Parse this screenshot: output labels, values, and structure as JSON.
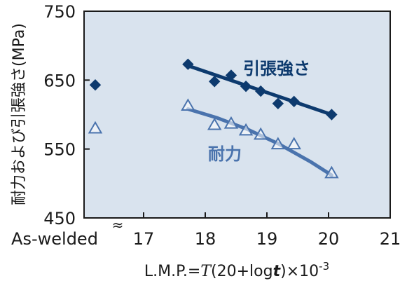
{
  "chart_data": {
    "type": "scatter",
    "xlabel": "L.M.P.=T(20+logt)×10-3",
    "xlabel_parts": {
      "prefix": "L.M.P.=",
      "T": "T",
      "mid": "(20+log",
      "t": "t",
      "suffix": ")×10",
      "exponent": "-3"
    },
    "ylabel": "耐力および引張強さ(MPa)",
    "x_ticks": [
      "As-welded",
      "17",
      "18",
      "19",
      "20",
      "21"
    ],
    "y_ticks": [
      "450",
      "550",
      "650",
      "750"
    ],
    "xlim": [
      16,
      21
    ],
    "ylim": [
      450,
      750
    ],
    "axis_break": "≈",
    "background_color": "#d9e3ee",
    "series": [
      {
        "name": "引張強さ",
        "marker": "filled-diamond",
        "color": "#0d3a6e",
        "as_welded": 643,
        "x": [
          17.72,
          18.15,
          18.42,
          18.66,
          18.9,
          19.18,
          19.44,
          20.05
        ],
        "values": [
          673,
          648,
          657,
          641,
          634,
          616,
          619,
          600
        ],
        "fit_line": {
          "x": [
            17.72,
            20.05
          ],
          "y": [
            671,
            600
          ]
        }
      },
      {
        "name": "耐力",
        "marker": "open-triangle",
        "color": "#4a73ad",
        "as_welded": 580,
        "x": [
          17.72,
          18.15,
          18.42,
          18.66,
          18.9,
          19.18,
          19.44,
          20.05
        ],
        "values": [
          613,
          585,
          587,
          577,
          571,
          557,
          557,
          515
        ],
        "fit_line": {
          "x": [
            17.72,
            18.2,
            18.7,
            19.2,
            19.7,
            20.05
          ],
          "y": [
            608,
            595,
            578,
            557,
            532,
            512
          ]
        }
      }
    ]
  }
}
